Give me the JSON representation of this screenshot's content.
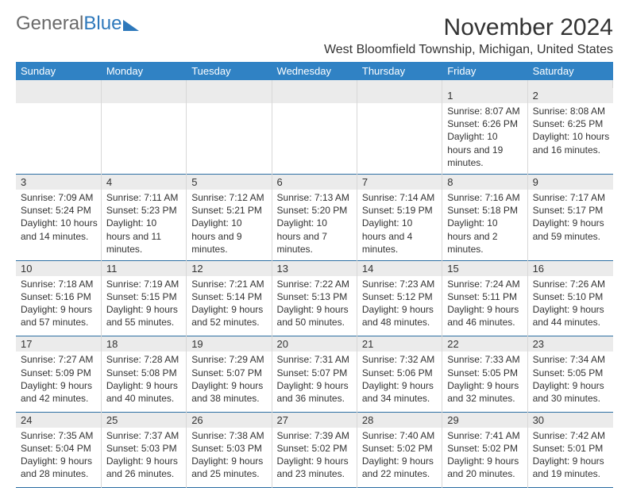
{
  "logo": {
    "text1": "General",
    "text2": "Blue"
  },
  "header": {
    "month_title": "November 2024",
    "location": "West Bloomfield Township, Michigan, United States"
  },
  "calendar": {
    "header_bg": "#3082c4",
    "header_fg": "#ffffff",
    "daynum_bg": "#ebebeb",
    "rule_color": "#2d6fa3",
    "days_of_week": [
      "Sunday",
      "Monday",
      "Tuesday",
      "Wednesday",
      "Thursday",
      "Friday",
      "Saturday"
    ],
    "weeks": [
      [
        null,
        null,
        null,
        null,
        null,
        {
          "num": "1",
          "sunrise": "Sunrise: 8:07 AM",
          "sunset": "Sunset: 6:26 PM",
          "daylight": "Daylight: 10 hours and 19 minutes."
        },
        {
          "num": "2",
          "sunrise": "Sunrise: 8:08 AM",
          "sunset": "Sunset: 6:25 PM",
          "daylight": "Daylight: 10 hours and 16 minutes."
        }
      ],
      [
        {
          "num": "3",
          "sunrise": "Sunrise: 7:09 AM",
          "sunset": "Sunset: 5:24 PM",
          "daylight": "Daylight: 10 hours and 14 minutes."
        },
        {
          "num": "4",
          "sunrise": "Sunrise: 7:11 AM",
          "sunset": "Sunset: 5:23 PM",
          "daylight": "Daylight: 10 hours and 11 minutes."
        },
        {
          "num": "5",
          "sunrise": "Sunrise: 7:12 AM",
          "sunset": "Sunset: 5:21 PM",
          "daylight": "Daylight: 10 hours and 9 minutes."
        },
        {
          "num": "6",
          "sunrise": "Sunrise: 7:13 AM",
          "sunset": "Sunset: 5:20 PM",
          "daylight": "Daylight: 10 hours and 7 minutes."
        },
        {
          "num": "7",
          "sunrise": "Sunrise: 7:14 AM",
          "sunset": "Sunset: 5:19 PM",
          "daylight": "Daylight: 10 hours and 4 minutes."
        },
        {
          "num": "8",
          "sunrise": "Sunrise: 7:16 AM",
          "sunset": "Sunset: 5:18 PM",
          "daylight": "Daylight: 10 hours and 2 minutes."
        },
        {
          "num": "9",
          "sunrise": "Sunrise: 7:17 AM",
          "sunset": "Sunset: 5:17 PM",
          "daylight": "Daylight: 9 hours and 59 minutes."
        }
      ],
      [
        {
          "num": "10",
          "sunrise": "Sunrise: 7:18 AM",
          "sunset": "Sunset: 5:16 PM",
          "daylight": "Daylight: 9 hours and 57 minutes."
        },
        {
          "num": "11",
          "sunrise": "Sunrise: 7:19 AM",
          "sunset": "Sunset: 5:15 PM",
          "daylight": "Daylight: 9 hours and 55 minutes."
        },
        {
          "num": "12",
          "sunrise": "Sunrise: 7:21 AM",
          "sunset": "Sunset: 5:14 PM",
          "daylight": "Daylight: 9 hours and 52 minutes."
        },
        {
          "num": "13",
          "sunrise": "Sunrise: 7:22 AM",
          "sunset": "Sunset: 5:13 PM",
          "daylight": "Daylight: 9 hours and 50 minutes."
        },
        {
          "num": "14",
          "sunrise": "Sunrise: 7:23 AM",
          "sunset": "Sunset: 5:12 PM",
          "daylight": "Daylight: 9 hours and 48 minutes."
        },
        {
          "num": "15",
          "sunrise": "Sunrise: 7:24 AM",
          "sunset": "Sunset: 5:11 PM",
          "daylight": "Daylight: 9 hours and 46 minutes."
        },
        {
          "num": "16",
          "sunrise": "Sunrise: 7:26 AM",
          "sunset": "Sunset: 5:10 PM",
          "daylight": "Daylight: 9 hours and 44 minutes."
        }
      ],
      [
        {
          "num": "17",
          "sunrise": "Sunrise: 7:27 AM",
          "sunset": "Sunset: 5:09 PM",
          "daylight": "Daylight: 9 hours and 42 minutes."
        },
        {
          "num": "18",
          "sunrise": "Sunrise: 7:28 AM",
          "sunset": "Sunset: 5:08 PM",
          "daylight": "Daylight: 9 hours and 40 minutes."
        },
        {
          "num": "19",
          "sunrise": "Sunrise: 7:29 AM",
          "sunset": "Sunset: 5:07 PM",
          "daylight": "Daylight: 9 hours and 38 minutes."
        },
        {
          "num": "20",
          "sunrise": "Sunrise: 7:31 AM",
          "sunset": "Sunset: 5:07 PM",
          "daylight": "Daylight: 9 hours and 36 minutes."
        },
        {
          "num": "21",
          "sunrise": "Sunrise: 7:32 AM",
          "sunset": "Sunset: 5:06 PM",
          "daylight": "Daylight: 9 hours and 34 minutes."
        },
        {
          "num": "22",
          "sunrise": "Sunrise: 7:33 AM",
          "sunset": "Sunset: 5:05 PM",
          "daylight": "Daylight: 9 hours and 32 minutes."
        },
        {
          "num": "23",
          "sunrise": "Sunrise: 7:34 AM",
          "sunset": "Sunset: 5:05 PM",
          "daylight": "Daylight: 9 hours and 30 minutes."
        }
      ],
      [
        {
          "num": "24",
          "sunrise": "Sunrise: 7:35 AM",
          "sunset": "Sunset: 5:04 PM",
          "daylight": "Daylight: 9 hours and 28 minutes."
        },
        {
          "num": "25",
          "sunrise": "Sunrise: 7:37 AM",
          "sunset": "Sunset: 5:03 PM",
          "daylight": "Daylight: 9 hours and 26 minutes."
        },
        {
          "num": "26",
          "sunrise": "Sunrise: 7:38 AM",
          "sunset": "Sunset: 5:03 PM",
          "daylight": "Daylight: 9 hours and 25 minutes."
        },
        {
          "num": "27",
          "sunrise": "Sunrise: 7:39 AM",
          "sunset": "Sunset: 5:02 PM",
          "daylight": "Daylight: 9 hours and 23 minutes."
        },
        {
          "num": "28",
          "sunrise": "Sunrise: 7:40 AM",
          "sunset": "Sunset: 5:02 PM",
          "daylight": "Daylight: 9 hours and 22 minutes."
        },
        {
          "num": "29",
          "sunrise": "Sunrise: 7:41 AM",
          "sunset": "Sunset: 5:02 PM",
          "daylight": "Daylight: 9 hours and 20 minutes."
        },
        {
          "num": "30",
          "sunrise": "Sunrise: 7:42 AM",
          "sunset": "Sunset: 5:01 PM",
          "daylight": "Daylight: 9 hours and 19 minutes."
        }
      ]
    ]
  }
}
